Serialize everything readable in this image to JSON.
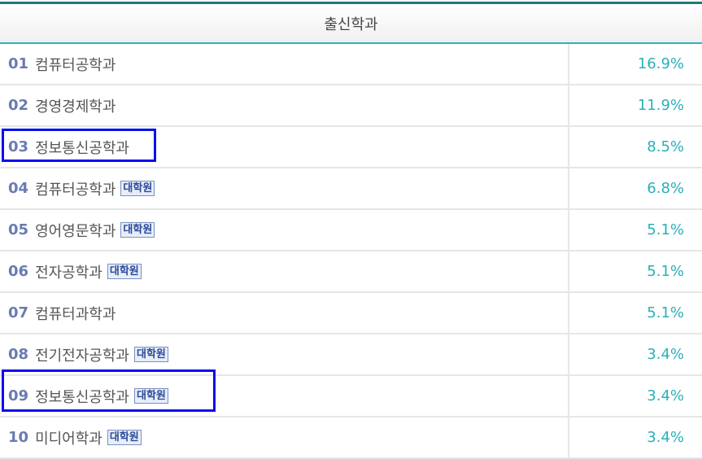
{
  "header": {
    "title": "출신학과"
  },
  "badge_label": "대학원",
  "rows": [
    {
      "rank": "01",
      "name": "컴퓨터공학과",
      "grad": false,
      "pct": "16.9%"
    },
    {
      "rank": "02",
      "name": "경영경제학과",
      "grad": false,
      "pct": "11.9%"
    },
    {
      "rank": "03",
      "name": "정보통신공학과",
      "grad": false,
      "pct": "8.5%",
      "highlighted": true
    },
    {
      "rank": "04",
      "name": "컴퓨터공학과",
      "grad": true,
      "pct": "6.8%"
    },
    {
      "rank": "05",
      "name": "영어영문학과",
      "grad": true,
      "pct": "5.1%"
    },
    {
      "rank": "06",
      "name": "전자공학과",
      "grad": true,
      "pct": "5.1%"
    },
    {
      "rank": "07",
      "name": "컴퓨터과학과",
      "grad": false,
      "pct": "5.1%"
    },
    {
      "rank": "08",
      "name": "전기전자공학과",
      "grad": true,
      "pct": "3.4%"
    },
    {
      "rank": "09",
      "name": "정보통신공학과",
      "grad": true,
      "pct": "3.4%",
      "highlighted": true
    },
    {
      "rank": "10",
      "name": "미디어학과",
      "grad": true,
      "pct": "3.4%"
    }
  ],
  "colors": {
    "accent": "#2ab0b8",
    "highlight": "#0010ee",
    "top_border": "#1f7a78"
  }
}
